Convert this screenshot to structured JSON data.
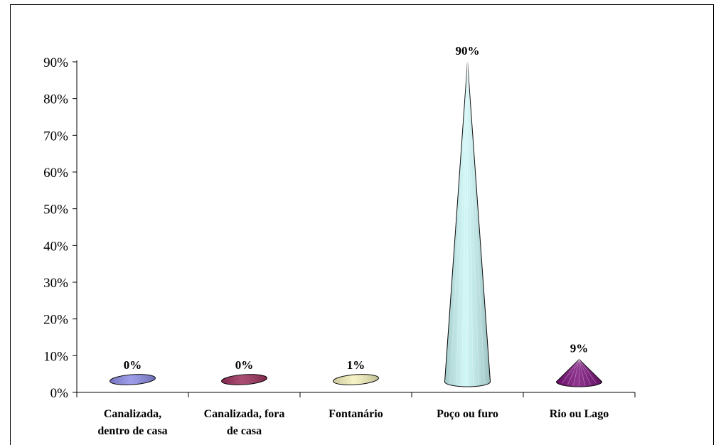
{
  "chart_data": {
    "type": "bar",
    "title": "",
    "xlabel": "",
    "ylabel": "",
    "categories": [
      [
        "Canalizada,",
        "dentro de casa"
      ],
      [
        "Canalizada, fora",
        "de casa"
      ],
      [
        "Fontanário"
      ],
      [
        "Poço ou furo"
      ],
      [
        "Rio ou Lago"
      ]
    ],
    "values": [
      0,
      0,
      1,
      90,
      9
    ],
    "data_labels": [
      "0%",
      "0%",
      "1%",
      "90%",
      "9%"
    ],
    "ylim": [
      0,
      90
    ],
    "y_ticks": [
      "0%",
      "10%",
      "20%",
      "30%",
      "40%",
      "50%",
      "60%",
      "70%",
      "80%",
      "90%"
    ],
    "grid": false,
    "legend": "none",
    "colors": [
      "#8c8ce6",
      "#9c2f5c",
      "#f5f2bd",
      "#c8f5f5",
      "#7a0f7a"
    ],
    "shape": "cone"
  }
}
